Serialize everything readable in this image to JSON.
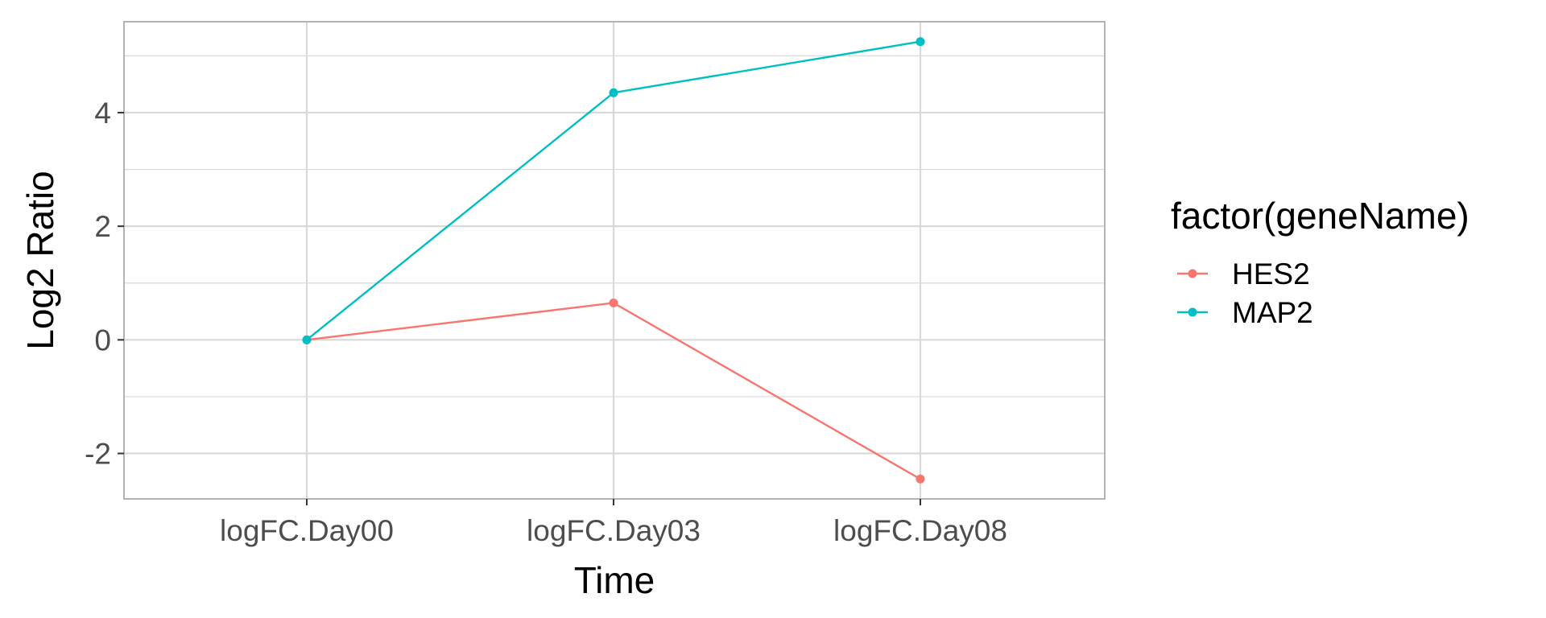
{
  "chart_data": {
    "type": "line",
    "categories": [
      "logFC.Day00",
      "logFC.Day03",
      "logFC.Day08"
    ],
    "series": [
      {
        "name": "HES2",
        "values": [
          0.0,
          0.65,
          -2.45
        ],
        "color": "#F8766D"
      },
      {
        "name": "MAP2",
        "values": [
          0.0,
          4.35,
          5.25
        ],
        "color": "#00BFC4"
      }
    ],
    "xlabel": "Time",
    "ylabel": "Log2 Ratio",
    "ylim": [
      -2.8,
      5.6
    ],
    "yticks": [
      -2,
      0,
      2,
      4
    ],
    "ytick_labels": [
      "-2",
      "0",
      "2",
      "4"
    ],
    "legend": {
      "title": "factor(geneName)",
      "position": "right"
    },
    "grid": true,
    "colors": {
      "grid": "#D9D9D9",
      "panel_border": "#B3B3B3"
    }
  }
}
